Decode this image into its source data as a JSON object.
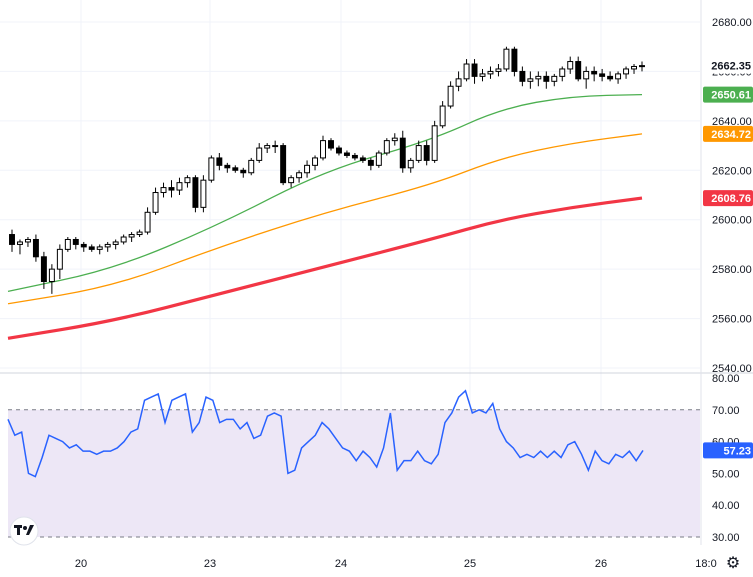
{
  "chart_data": [
    {
      "type": "candlestick",
      "title": "",
      "x_tick_labels": [
        "20",
        "23",
        "24",
        "25",
        "26",
        "18:0"
      ],
      "y_tick_labels": [
        "2680.00",
        "2660.00",
        "2640.00",
        "2620.00",
        "2600.00",
        "2580.00",
        "2560.00",
        "2540.00"
      ],
      "ylim": [
        2540,
        2680
      ],
      "last_price": "2662.35",
      "ohlc": [
        [
          2594,
          2596,
          2587,
          2590
        ],
        [
          2590,
          2592,
          2586,
          2591
        ],
        [
          2591,
          2593,
          2589,
          2592
        ],
        [
          2592,
          2594,
          2583,
          2585
        ],
        [
          2585,
          2587,
          2572,
          2575
        ],
        [
          2575,
          2582,
          2570,
          2580
        ],
        [
          2580,
          2590,
          2576,
          2588
        ],
        [
          2588,
          2593,
          2587,
          2592
        ],
        [
          2592,
          2593,
          2588,
          2590
        ],
        [
          2590,
          2591,
          2587,
          2589
        ],
        [
          2589,
          2590,
          2587,
          2588
        ],
        [
          2588,
          2590,
          2586,
          2589
        ],
        [
          2589,
          2591,
          2587,
          2590
        ],
        [
          2590,
          2592,
          2588,
          2591
        ],
        [
          2591,
          2594,
          2590,
          2593
        ],
        [
          2593,
          2595,
          2591,
          2594
        ],
        [
          2594,
          2596,
          2593,
          2595
        ],
        [
          2595,
          2605,
          2594,
          2603
        ],
        [
          2603,
          2613,
          2602,
          2611
        ],
        [
          2611,
          2615,
          2609,
          2613
        ],
        [
          2613,
          2616,
          2609,
          2612
        ],
        [
          2612,
          2617,
          2610,
          2615
        ],
        [
          2615,
          2618,
          2613,
          2617
        ],
        [
          2617,
          2618,
          2603,
          2605
        ],
        [
          2605,
          2618,
          2603,
          2616
        ],
        [
          2616,
          2626,
          2615,
          2625
        ],
        [
          2625,
          2627,
          2620,
          2622
        ],
        [
          2622,
          2623,
          2619,
          2621
        ],
        [
          2621,
          2622,
          2619,
          2620
        ],
        [
          2620,
          2621,
          2617,
          2619
        ],
        [
          2619,
          2625,
          2618,
          2624
        ],
        [
          2624,
          2631,
          2623,
          2629
        ],
        [
          2629,
          2631,
          2627,
          2630
        ],
        [
          2630,
          2632,
          2627,
          2630
        ],
        [
          2630,
          2631,
          2614,
          2615
        ],
        [
          2615,
          2618,
          2613,
          2617
        ],
        [
          2617,
          2620,
          2615,
          2619
        ],
        [
          2619,
          2624,
          2617,
          2622
        ],
        [
          2622,
          2626,
          2620,
          2625
        ],
        [
          2625,
          2634,
          2624,
          2632
        ],
        [
          2632,
          2633,
          2628,
          2629
        ],
        [
          2629,
          2630,
          2626,
          2627
        ],
        [
          2627,
          2628,
          2625,
          2626
        ],
        [
          2626,
          2627,
          2624,
          2625
        ],
        [
          2625,
          2626,
          2623,
          2624
        ],
        [
          2624,
          2625,
          2620,
          2622
        ],
        [
          2622,
          2628,
          2621,
          2627
        ],
        [
          2627,
          2633,
          2626,
          2632
        ],
        [
          2632,
          2635,
          2630,
          2633
        ],
        [
          2633,
          2636,
          2619,
          2621
        ],
        [
          2621,
          2625,
          2619,
          2624
        ],
        [
          2624,
          2632,
          2623,
          2630
        ],
        [
          2630,
          2632,
          2622,
          2624
        ],
        [
          2624,
          2640,
          2623,
          2638
        ],
        [
          2638,
          2648,
          2637,
          2646
        ],
        [
          2646,
          2656,
          2645,
          2654
        ],
        [
          2654,
          2660,
          2652,
          2657
        ],
        [
          2657,
          2665,
          2656,
          2663
        ],
        [
          2663,
          2665,
          2655,
          2658
        ],
        [
          2658,
          2661,
          2656,
          2659
        ],
        [
          2659,
          2662,
          2657,
          2660
        ],
        [
          2660,
          2663,
          2658,
          2661
        ],
        [
          2661,
          2670,
          2660,
          2669
        ],
        [
          2669,
          2670,
          2658,
          2660
        ],
        [
          2660,
          2662,
          2654,
          2656
        ],
        [
          2656,
          2660,
          2653,
          2657
        ],
        [
          2657,
          2660,
          2654,
          2658
        ],
        [
          2658,
          2660,
          2653,
          2656
        ],
        [
          2656,
          2659,
          2654,
          2658
        ],
        [
          2658,
          2662,
          2656,
          2661
        ],
        [
          2661,
          2666,
          2659,
          2664
        ],
        [
          2664,
          2666,
          2656,
          2657
        ],
        [
          2657,
          2662,
          2653,
          2660
        ],
        [
          2660,
          2662,
          2656,
          2659
        ],
        [
          2659,
          2661,
          2656,
          2658
        ],
        [
          2658,
          2660,
          2656,
          2657
        ],
        [
          2657,
          2660,
          2655,
          2659
        ],
        [
          2659,
          2662,
          2657,
          2661
        ],
        [
          2661,
          2663,
          2659,
          2662
        ],
        [
          2662,
          2664,
          2660,
          2662.35
        ]
      ],
      "series": [
        {
          "role": "ma_fast",
          "color": "#4caf50",
          "label": "2650.61",
          "values": [
            [
              0,
              2571
            ],
            [
              12,
              2580
            ],
            [
              24,
              2598
            ],
            [
              36,
              2620
            ],
            [
              48,
              2632
            ],
            [
              56,
              2645
            ],
            [
              64,
              2650
            ],
            [
              72,
              2650.61
            ]
          ]
        },
        {
          "role": "ma_medium",
          "color": "#ff9800",
          "label": "2634.72",
          "values": [
            [
              0,
              2566
            ],
            [
              12,
              2573
            ],
            [
              24,
              2589
            ],
            [
              36,
              2603
            ],
            [
              48,
              2614
            ],
            [
              56,
              2625
            ],
            [
              64,
              2631
            ],
            [
              72,
              2634.72
            ]
          ]
        },
        {
          "role": "ma_slow",
          "color": "#f23645",
          "label": "2608.76",
          "values": [
            [
              0,
              2552
            ],
            [
              12,
              2559
            ],
            [
              24,
              2570
            ],
            [
              36,
              2581
            ],
            [
              48,
              2592
            ],
            [
              56,
              2600
            ],
            [
              64,
              2605
            ],
            [
              72,
              2608.76
            ]
          ]
        }
      ]
    },
    {
      "type": "line",
      "title": "",
      "y_tick_labels": [
        "80.00",
        "70.00",
        "60.00",
        "50.00",
        "40.00",
        "30.00"
      ],
      "ylim": [
        30,
        80
      ],
      "bands": [
        30,
        70
      ],
      "last_value_label": "57.23",
      "color": "#2962ff",
      "values": [
        67,
        62,
        63,
        50,
        49,
        55,
        62,
        61,
        60,
        58,
        59,
        57,
        57,
        56,
        57,
        57,
        58,
        60,
        63,
        64,
        73,
        74,
        75,
        66,
        73,
        74,
        75,
        63,
        66,
        74,
        73,
        66,
        67,
        67,
        64,
        66,
        61,
        62,
        68,
        69,
        68,
        50,
        51,
        58,
        60,
        62,
        66,
        64,
        61,
        58,
        57,
        54,
        57,
        55,
        52,
        58,
        69,
        51,
        54,
        54,
        57,
        54,
        53,
        56,
        66,
        69,
        74,
        76,
        69,
        70,
        69,
        72,
        64,
        60,
        58,
        55,
        56,
        55,
        57,
        55,
        57,
        55,
        59,
        60,
        56,
        51,
        57,
        54,
        53,
        56,
        55,
        57,
        54,
        57.23
      ]
    }
  ],
  "colors": {
    "bg": "#ffffff",
    "up_body": "#ffffff",
    "down_body": "#000000",
    "grid": "#f0f3fa",
    "rsi_fill": "#ede7f6",
    "rsi_band": "#787b86",
    "price_tag_bg": "#ffffff",
    "price_tag_text": "#131722"
  },
  "icons": {
    "logo": "tradingview-logo-icon",
    "settings": "gear-icon"
  }
}
